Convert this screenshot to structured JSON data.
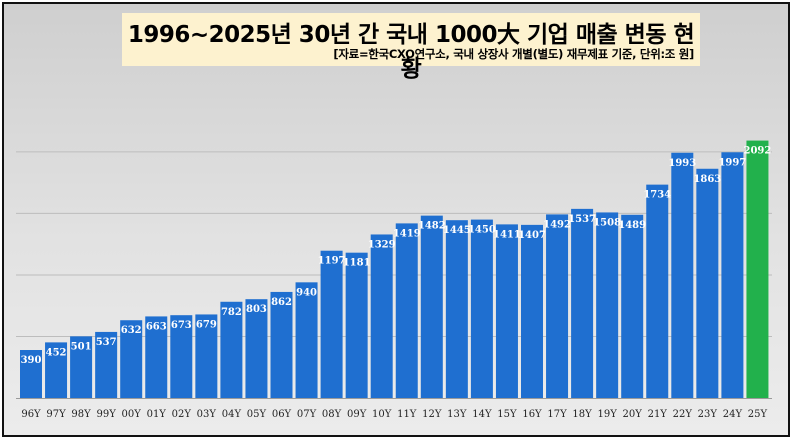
{
  "chart_data": {
    "type": "bar",
    "title": "1996~2025년 30년 간 국내 1000大 기업 매출 변동 현황",
    "subtitle": "[자료=한국CXO연구소, 국내 상장사 개별(별도) 재무제표 기준, 단위:조 원]",
    "categories": [
      "96Y",
      "97Y",
      "98Y",
      "99Y",
      "00Y",
      "01Y",
      "02Y",
      "03Y",
      "04Y",
      "05Y",
      "06Y",
      "07Y",
      "08Y",
      "09Y",
      "10Y",
      "11Y",
      "12Y",
      "13Y",
      "14Y",
      "15Y",
      "16Y",
      "17Y",
      "18Y",
      "19Y",
      "20Y",
      "21Y",
      "22Y",
      "23Y",
      "24Y",
      "25Y"
    ],
    "values": [
      390,
      452,
      501,
      537,
      632,
      663,
      673,
      679,
      782,
      803,
      862,
      940,
      1197,
      1181,
      1329,
      1419,
      1482,
      1445,
      1450,
      1411,
      1407,
      1492,
      1537,
      1508,
      1489,
      1734,
      1993,
      1863,
      1997,
      2092
    ],
    "ylim": [
      0,
      2150
    ],
    "grid": true,
    "colors": {
      "bar": "#1f6fd0",
      "highlight": "#22b14c",
      "grid": "#bdbdbd"
    },
    "highlight_index": 29
  }
}
